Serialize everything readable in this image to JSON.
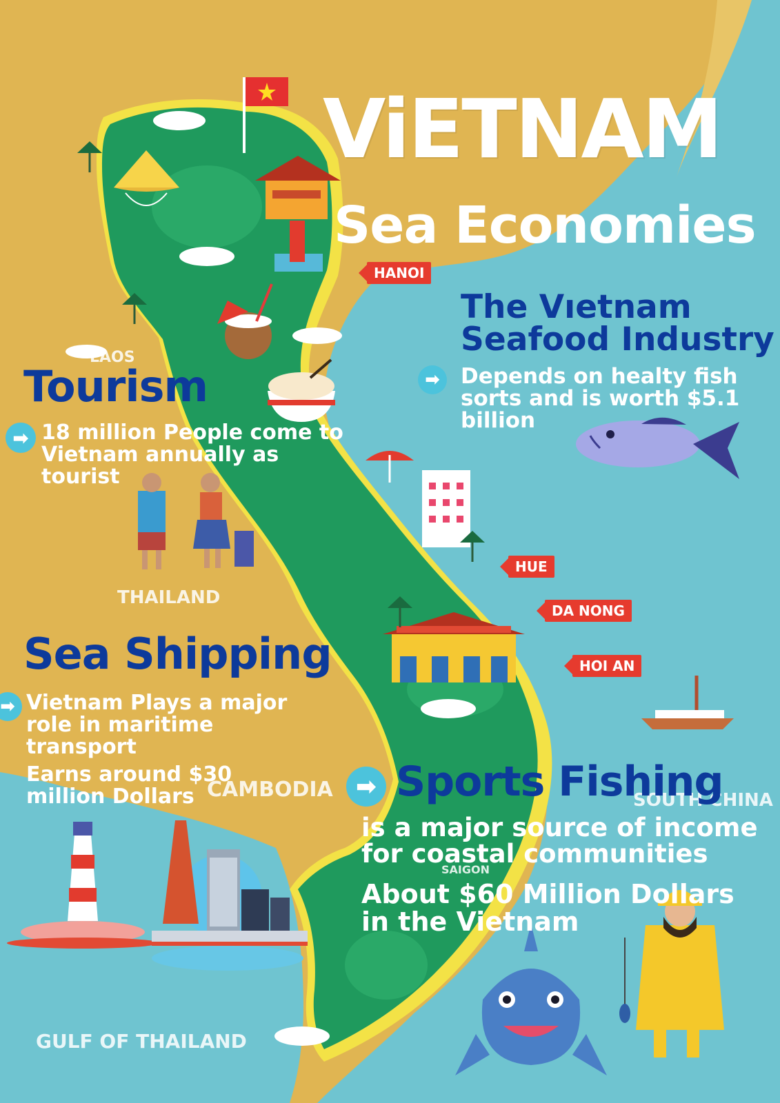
{
  "title": "ViETNAM",
  "subtitle": "Sea Economies",
  "colors": {
    "land_neighbor": "#e0b552",
    "sea": "#6fc4d0",
    "vietnam_land": "#1f9a5d",
    "coast": "#f3e246",
    "heading_blue": "#0d3a9b",
    "arrow_circle": "#4cc3dc",
    "city_label": "#e63b2e"
  },
  "map_labels": {
    "laos": "LAOS",
    "thailand": "THAILAND",
    "cambodia": "CAMBODIA",
    "south_china_sea": "SOUTH CHINA SE",
    "gulf": "GULF OF THAILAND",
    "saigon": "SAIGON"
  },
  "city_labels": {
    "hanoi": "HANOI",
    "hue": "HUE",
    "danong": "DA NONG",
    "hoian": "HOI AN"
  },
  "seafood": {
    "heading_line1": "The Vıetnam",
    "heading_line2": "Seafood Industry",
    "body_line1": "Depends on healty fish",
    "body_line2": "sorts and is worth $5.1",
    "body_line3": "billion",
    "arrow_icon": "arrow-right-icon"
  },
  "tourism": {
    "heading": "Tourism",
    "body_line1": "18 million People come to",
    "body_line2": "Vietnam annually as",
    "body_line3": "tourist",
    "arrow_icon": "arrow-right-icon"
  },
  "shipping": {
    "heading": "Sea Shipping",
    "body_line1": "Vietnam Plays a major",
    "body_line2": "role in maritime",
    "body_line3": "transport",
    "body_line4": "Earns around $30",
    "body_line5": "million Dollars",
    "arrow_icon": "arrow-right-icon"
  },
  "fishing": {
    "heading": "Sports Fishing",
    "body_line1": "is a major source of income",
    "body_line2": "for coastal communities",
    "body_line3": "About $60 Million Dollars",
    "body_line4": "in the Vietnam",
    "arrow_icon": "arrow-right-icon"
  },
  "icons": [
    "vietnam-flag-icon",
    "conical-hat-icon",
    "pagoda-icon",
    "coconut-icon",
    "noodle-bowl-icon",
    "beach-umbrella-icon",
    "hotel-building-icon",
    "temple-icon",
    "fish-icon",
    "tourists-icon",
    "lighthouse-icon",
    "port-city-icon",
    "sailboat-icon",
    "shark-icon",
    "fisherman-icon",
    "palm-tree-icon",
    "cloud-icon"
  ]
}
